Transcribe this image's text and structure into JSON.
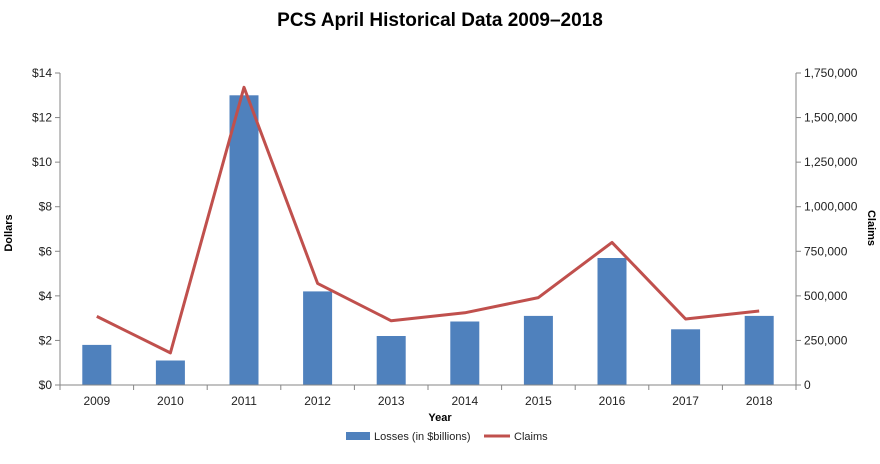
{
  "chart_data": {
    "type": "bar",
    "title": "PCS April Historical Data 2009–2018",
    "xlabel": "Year",
    "ylabel": "Dollars",
    "y2label": "Claims",
    "categories": [
      "2009",
      "2010",
      "2011",
      "2012",
      "2013",
      "2014",
      "2015",
      "2016",
      "2017",
      "2018"
    ],
    "ylim": [
      0,
      14
    ],
    "y2lim": [
      0,
      1750000
    ],
    "yticks": [
      "$0",
      "$2",
      "$4",
      "$6",
      "$8",
      "$10",
      "$12",
      "$14"
    ],
    "y2ticks": [
      "0",
      "250,000",
      "500,000",
      "750,000",
      "1,000,000",
      "1,250,000",
      "1,500,000",
      "1,750,000"
    ],
    "grid": false,
    "legend": "bottom",
    "series": [
      {
        "name": "Losses (in $billions)",
        "type": "bar",
        "axis": "left",
        "color": "#4F81BD",
        "values": [
          1.8,
          1.1,
          13.0,
          4.2,
          2.2,
          2.85,
          3.1,
          5.7,
          2.5,
          3.1
        ]
      },
      {
        "name": "Claims",
        "type": "line",
        "axis": "right",
        "color": "#C0504D",
        "values": [
          385000,
          180000,
          1670000,
          570000,
          360000,
          405000,
          490000,
          800000,
          370000,
          415000
        ]
      }
    ]
  }
}
